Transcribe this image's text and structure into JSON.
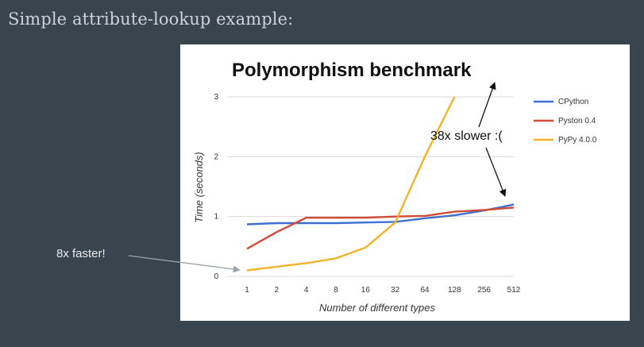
{
  "slide": {
    "heading": "Simple attribute-lookup example:",
    "left_callout": "8x faster!"
  },
  "chart_data": {
    "type": "line",
    "title": "Polymorphism benchmark",
    "xlabel": "Number of different types",
    "ylabel": "Time (seconds)",
    "categories": [
      "1",
      "2",
      "4",
      "8",
      "16",
      "32",
      "64",
      "128",
      "256",
      "512"
    ],
    "ylim": [
      0,
      3
    ],
    "yticks": [
      0,
      1,
      2,
      3
    ],
    "grid": true,
    "legend_position": "right",
    "series": [
      {
        "name": "CPython",
        "color": "#3f6fd1",
        "values": [
          0.87,
          0.89,
          0.89,
          0.89,
          0.9,
          0.91,
          0.97,
          1.02,
          1.1,
          1.2
        ]
      },
      {
        "name": "Pyston 0.4",
        "color": "#d24b37",
        "values": [
          0.46,
          0.74,
          0.98,
          0.98,
          0.98,
          1.0,
          1.01,
          1.08,
          1.11,
          1.15
        ]
      },
      {
        "name": "PyPy 4.0.0",
        "color": "#f2b32b",
        "values": [
          0.1,
          0.16,
          0.22,
          0.3,
          0.48,
          0.9,
          2.0,
          3.0,
          null,
          null
        ]
      }
    ],
    "annotations": [
      {
        "text": "38x slower :("
      }
    ]
  }
}
